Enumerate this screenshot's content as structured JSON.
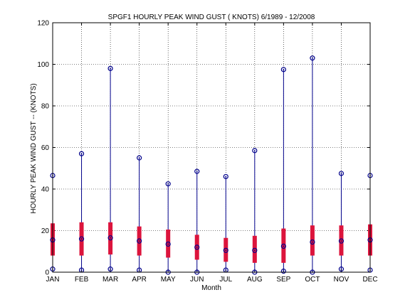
{
  "chart_data": {
    "type": "boxplot",
    "title": "SPGF1  HOURLY PEAK WIND GUST ( KNOTS) 6/1989 - 12/2008",
    "xlabel": "Month",
    "ylabel": "HOURLY PEAK WIND GUST --  (KNOTS)",
    "ylim": [
      0,
      120
    ],
    "yticks": [
      0,
      20,
      40,
      60,
      80,
      100,
      120
    ],
    "grid": true,
    "colors": {
      "whisker": "#00008b",
      "box": "#dc143c",
      "marker": "#00008b",
      "axis": "#000000"
    },
    "categories": [
      "JAN",
      "FEB",
      "MAR",
      "APR",
      "MAY",
      "JUN",
      "JUL",
      "AUG",
      "SEP",
      "OCT",
      "NOV",
      "DEC"
    ],
    "series": [
      {
        "min": [
          1.5,
          1.0,
          1.5,
          1.0,
          0.0,
          0.0,
          1.0,
          0.0,
          0.5,
          0.0,
          1.5,
          1.0
        ],
        "q1": [
          8.0,
          8.0,
          8.5,
          8.0,
          7.0,
          6.0,
          5.0,
          4.5,
          4.5,
          8.0,
          8.0,
          8.0
        ],
        "median": [
          15.5,
          16.0,
          16.5,
          15.0,
          13.5,
          12.0,
          10.5,
          10.5,
          12.5,
          14.5,
          15.0,
          15.5
        ],
        "q3": [
          23.5,
          24.0,
          24.0,
          22.0,
          20.5,
          18.0,
          16.5,
          17.5,
          21.0,
          22.5,
          22.5,
          23.0
        ],
        "max": [
          46.5,
          57.0,
          98.0,
          55.0,
          42.5,
          48.5,
          46.0,
          58.5,
          97.5,
          103.0,
          47.5,
          46.5
        ]
      }
    ]
  }
}
